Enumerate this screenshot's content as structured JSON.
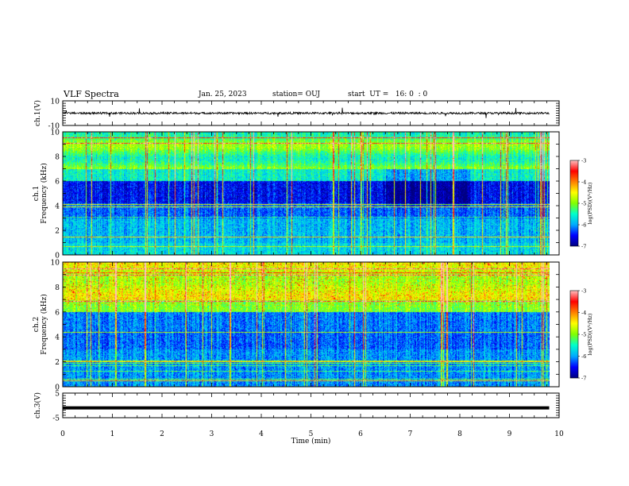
{
  "header": {
    "title": "VLF Spectra",
    "date": "Jan. 25, 2023",
    "station": "station= OUJ",
    "start": "start  UT =   16: 0  : 0"
  },
  "chart_data": [
    {
      "type": "line",
      "panel": "ch1-waveform",
      "ylabel": "ch.1(V)",
      "ylim": [
        -10,
        10
      ],
      "y_ticks": [
        "10",
        "-10"
      ],
      "xlim": [
        0,
        10
      ],
      "approx_baseline": 0,
      "color": "#000000"
    },
    {
      "type": "heatmap",
      "panel": "ch1-spectrogram",
      "ylabel": "ch.1\nFrequency (kHz)",
      "ylim": [
        0,
        10
      ],
      "y_ticks": [
        "0",
        "2",
        "4",
        "6",
        "8",
        "10"
      ],
      "xlim": [
        0,
        10
      ],
      "colorbar": {
        "label": "log(PSD)(V²/Hz)",
        "range": [
          -7,
          -3
        ],
        "ticks": [
          "-3",
          "-4",
          "-5",
          "-6",
          "-7"
        ],
        "colormap": [
          "#000080",
          "#0000ff",
          "#00aaff",
          "#00ffcc",
          "#80ff00",
          "#ffff00",
          "#ff8000",
          "#ff0000",
          "#ffc0c0"
        ]
      }
    },
    {
      "type": "heatmap",
      "panel": "ch2-spectrogram",
      "ylabel": "ch.2\nFrequency (kHz)",
      "ylim": [
        0,
        10
      ],
      "y_ticks": [
        "0",
        "2",
        "4",
        "6",
        "8",
        "10"
      ],
      "xlim": [
        0,
        10
      ],
      "colorbar": {
        "label": "log(PSD)(V²/Hz)",
        "range": [
          -7,
          -3
        ],
        "ticks": [
          "-3",
          "-4",
          "-5",
          "-6",
          "-7"
        ]
      }
    },
    {
      "type": "line",
      "panel": "ch3-waveform",
      "ylabel": "ch.3(V)",
      "ylim": [
        -5,
        5
      ],
      "y_ticks": [
        "5",
        "-5"
      ],
      "xlim": [
        0,
        10
      ],
      "constant_value": -1,
      "color": "#000000"
    }
  ],
  "x_axis": {
    "label": "Time  (min)",
    "ticks": [
      "0",
      "1",
      "2",
      "3",
      "4",
      "5",
      "6",
      "7",
      "8",
      "9",
      "10"
    ],
    "data_end_min": 9.8
  }
}
